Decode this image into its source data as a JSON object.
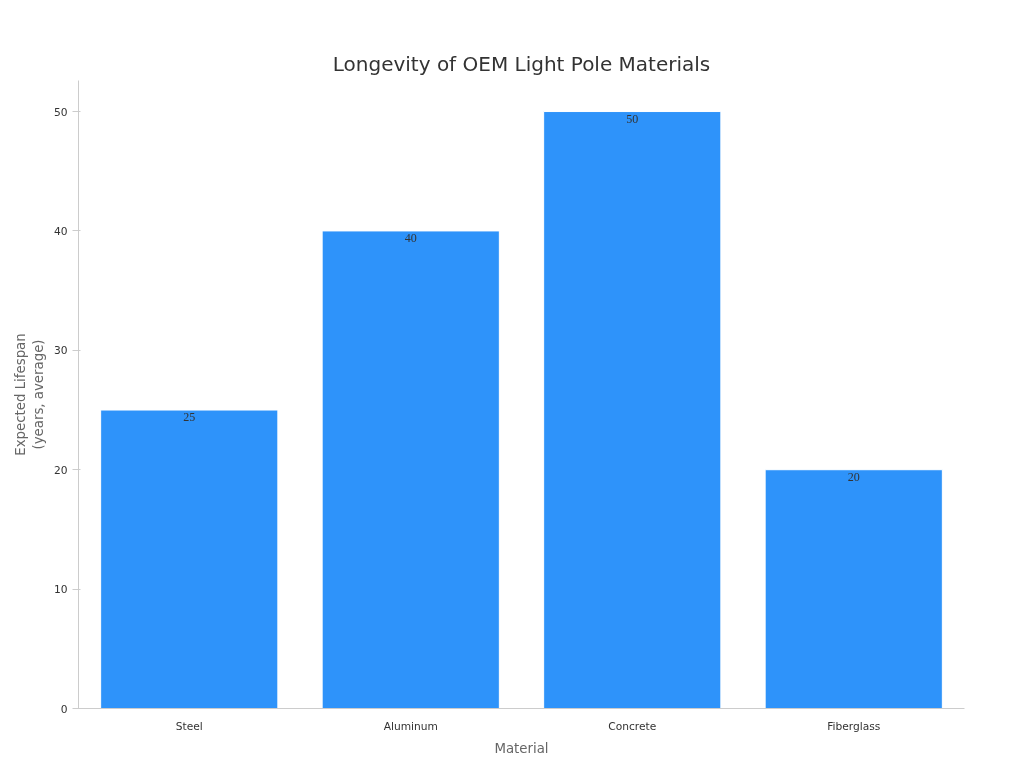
{
  "chart_data": {
    "type": "bar",
    "title": "Longevity of OEM Light Pole Materials",
    "xlabel": "Material",
    "ylabel": "Expected Lifespan\n(years, average)",
    "categories": [
      "Steel",
      "Aluminum",
      "Concrete",
      "Fiberglass"
    ],
    "values": [
      25,
      40,
      50,
      20
    ],
    "color": "#2e93fa",
    "ylim": [
      0,
      52.6
    ],
    "yticks": [
      0,
      10,
      20,
      30,
      40,
      50
    ],
    "grid": false,
    "data_labels": true
  }
}
